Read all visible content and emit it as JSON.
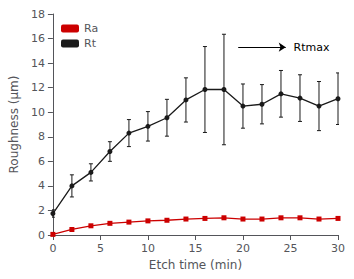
{
  "chart_data": {
    "type": "line",
    "xlabel": "Etch time (min)",
    "ylabel": "Roughness (μm)",
    "x": [
      0,
      2,
      4,
      6,
      8,
      10,
      12,
      14,
      16,
      18,
      20,
      22,
      24,
      26,
      28,
      30
    ],
    "xlim": [
      0,
      30
    ],
    "xticks": [
      0,
      5,
      10,
      15,
      20,
      25,
      30
    ],
    "ylim": [
      0,
      18
    ],
    "yticks": [
      0,
      2,
      4,
      6,
      8,
      10,
      12,
      14,
      16,
      18
    ],
    "grid": false,
    "legend": "upper left",
    "series": [
      {
        "name": "Ra",
        "color": "#cc0000",
        "marker": "square",
        "line_style": "solid",
        "values": [
          0.05,
          0.45,
          0.75,
          0.95,
          1.05,
          1.15,
          1.2,
          1.3,
          1.35,
          1.4,
          1.3,
          1.3,
          1.4,
          1.4,
          1.3,
          1.35
        ],
        "errors": [
          0.02,
          0.05,
          0.05,
          0.05,
          0.05,
          0.05,
          0.05,
          0.05,
          0.1,
          0.12,
          0.05,
          0.05,
          0.1,
          0.1,
          0.05,
          0.05
        ]
      },
      {
        "name": "Rt",
        "color": "#1a1a1a",
        "marker": "circle",
        "line_style": "solid",
        "values": [
          1.75,
          4.0,
          5.1,
          6.8,
          8.3,
          8.85,
          9.55,
          11.0,
          11.85,
          11.85,
          10.5,
          10.65,
          11.5,
          11.15,
          10.5,
          11.1
        ],
        "errors": [
          0.3,
          0.9,
          0.7,
          0.8,
          1.1,
          1.2,
          1.5,
          1.8,
          3.5,
          4.5,
          1.8,
          1.6,
          1.9,
          1.9,
          2.0,
          2.1
        ]
      }
    ],
    "annotations": [
      {
        "text": "Rtmax",
        "x": 25.0,
        "y": 15.3,
        "arrow_from": [
          19.5,
          15.3
        ],
        "arrow_to": [
          24.5,
          15.3
        ]
      }
    ]
  }
}
